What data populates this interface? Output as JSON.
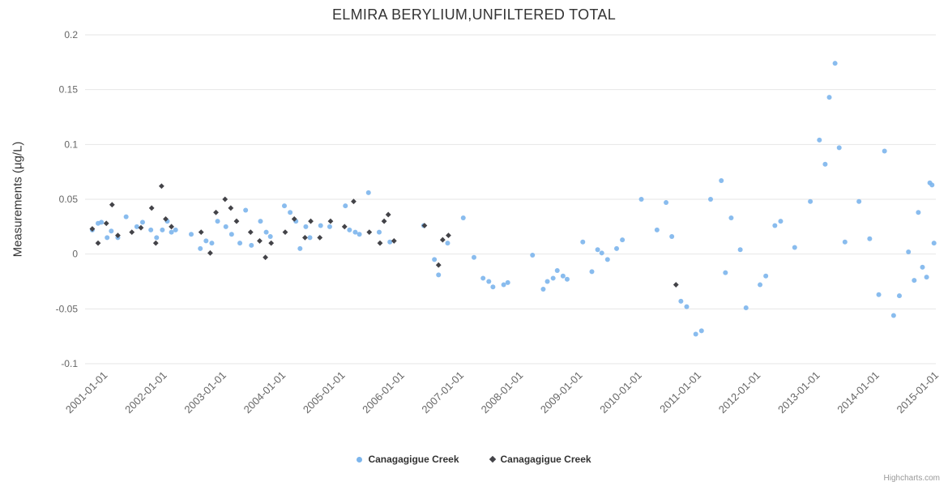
{
  "credits": {
    "label": "Highcharts.com"
  },
  "chart_data": {
    "type": "scatter",
    "title": "ELMIRA BERYLIUM,UNFILTERED TOTAL",
    "xlabel": "",
    "ylabel": "Measurements (µg/L)",
    "grid": "horizontal-only",
    "legend_position": "bottom-center",
    "x_axis": {
      "type": "datetime",
      "range": [
        "2000-09-01",
        "2015-01-01"
      ],
      "tick_labels": [
        "2001-01-01",
        "2002-01-01",
        "2003-01-01",
        "2004-01-01",
        "2005-01-01",
        "2006-01-01",
        "2007-01-01",
        "2008-01-01",
        "2009-01-01",
        "2010-01-01",
        "2011-01-01",
        "2012-01-01",
        "2013-01-01",
        "2014-01-01",
        "2015-01-01"
      ]
    },
    "y_axis": {
      "range": [
        -0.1,
        0.2
      ],
      "ticks": [
        -0.1,
        -0.05,
        0,
        0.05,
        0.1,
        0.15,
        0.2
      ]
    },
    "series": [
      {
        "name": "Canagagigue Creek",
        "marker": "circle",
        "color": "#7cb5ec",
        "points": [
          [
            "2000-10-15",
            0.022
          ],
          [
            "2000-11-20",
            0.028
          ],
          [
            "2000-12-10",
            0.029
          ],
          [
            "2001-01-15",
            0.015
          ],
          [
            "2001-02-10",
            0.021
          ],
          [
            "2001-03-20",
            0.015
          ],
          [
            "2001-05-10",
            0.034
          ],
          [
            "2001-07-15",
            0.025
          ],
          [
            "2001-08-20",
            0.029
          ],
          [
            "2001-10-10",
            0.022
          ],
          [
            "2001-11-15",
            0.015
          ],
          [
            "2001-12-20",
            0.022
          ],
          [
            "2002-01-20",
            0.03
          ],
          [
            "2002-02-15",
            0.02
          ],
          [
            "2002-03-10",
            0.022
          ],
          [
            "2002-06-15",
            0.018
          ],
          [
            "2002-08-10",
            0.005
          ],
          [
            "2002-09-15",
            0.012
          ],
          [
            "2002-10-20",
            0.01
          ],
          [
            "2002-11-25",
            0.03
          ],
          [
            "2003-01-15",
            0.025
          ],
          [
            "2003-02-20",
            0.018
          ],
          [
            "2003-04-10",
            0.01
          ],
          [
            "2003-05-15",
            0.04
          ],
          [
            "2003-06-20",
            0.008
          ],
          [
            "2003-08-15",
            0.03
          ],
          [
            "2003-09-20",
            0.02
          ],
          [
            "2003-10-15",
            0.016
          ],
          [
            "2004-01-10",
            0.044
          ],
          [
            "2004-02-15",
            0.038
          ],
          [
            "2004-03-20",
            0.03
          ],
          [
            "2004-04-15",
            0.005
          ],
          [
            "2004-05-20",
            0.025
          ],
          [
            "2004-06-15",
            0.015
          ],
          [
            "2004-08-20",
            0.026
          ],
          [
            "2004-10-15",
            0.025
          ],
          [
            "2005-01-20",
            0.044
          ],
          [
            "2005-02-15",
            0.022
          ],
          [
            "2005-03-20",
            0.02
          ],
          [
            "2005-04-15",
            0.018
          ],
          [
            "2005-06-10",
            0.056
          ],
          [
            "2005-08-15",
            0.02
          ],
          [
            "2005-10-20",
            0.011
          ],
          [
            "2006-05-15",
            0.026
          ],
          [
            "2006-07-20",
            -0.005
          ],
          [
            "2006-08-15",
            -0.019
          ],
          [
            "2006-10-10",
            0.01
          ],
          [
            "2007-01-15",
            0.033
          ],
          [
            "2007-03-20",
            -0.003
          ],
          [
            "2007-05-15",
            -0.022
          ],
          [
            "2007-06-20",
            -0.025
          ],
          [
            "2007-07-15",
            -0.03
          ],
          [
            "2007-09-20",
            -0.028
          ],
          [
            "2007-10-15",
            -0.026
          ],
          [
            "2008-03-15",
            -0.001
          ],
          [
            "2008-05-20",
            -0.032
          ],
          [
            "2008-06-15",
            -0.025
          ],
          [
            "2008-07-20",
            -0.022
          ],
          [
            "2008-08-15",
            -0.015
          ],
          [
            "2008-09-20",
            -0.02
          ],
          [
            "2008-10-15",
            -0.023
          ],
          [
            "2009-01-20",
            0.011
          ],
          [
            "2009-03-15",
            -0.016
          ],
          [
            "2009-04-20",
            0.004
          ],
          [
            "2009-05-15",
            0.001
          ],
          [
            "2009-06-20",
            -0.005
          ],
          [
            "2009-08-15",
            0.005
          ],
          [
            "2009-09-20",
            0.013
          ],
          [
            "2010-01-15",
            0.05
          ],
          [
            "2010-04-20",
            0.022
          ],
          [
            "2010-06-15",
            0.047
          ],
          [
            "2010-07-20",
            0.016
          ],
          [
            "2010-09-15",
            -0.043
          ],
          [
            "2010-10-20",
            -0.048
          ],
          [
            "2010-12-15",
            -0.073
          ],
          [
            "2011-01-20",
            -0.07
          ],
          [
            "2011-03-15",
            0.05
          ],
          [
            "2011-05-20",
            0.067
          ],
          [
            "2011-06-15",
            -0.017
          ],
          [
            "2011-07-20",
            0.033
          ],
          [
            "2011-09-15",
            0.004
          ],
          [
            "2011-10-20",
            -0.049
          ],
          [
            "2012-01-15",
            -0.028
          ],
          [
            "2012-02-20",
            -0.02
          ],
          [
            "2012-04-15",
            0.026
          ],
          [
            "2012-05-20",
            0.03
          ],
          [
            "2012-08-15",
            0.006
          ],
          [
            "2012-11-20",
            0.048
          ],
          [
            "2013-01-15",
            0.104
          ],
          [
            "2013-02-20",
            0.082
          ],
          [
            "2013-03-15",
            0.143
          ],
          [
            "2013-04-20",
            0.174
          ],
          [
            "2013-05-15",
            0.097
          ],
          [
            "2013-06-20",
            0.011
          ],
          [
            "2013-09-15",
            0.048
          ],
          [
            "2013-11-20",
            0.014
          ],
          [
            "2014-01-15",
            -0.037
          ],
          [
            "2014-02-20",
            0.094
          ],
          [
            "2014-04-15",
            -0.056
          ],
          [
            "2014-05-20",
            -0.038
          ],
          [
            "2014-07-15",
            0.002
          ],
          [
            "2014-08-20",
            -0.024
          ],
          [
            "2014-09-15",
            0.038
          ],
          [
            "2014-10-10",
            -0.012
          ],
          [
            "2014-11-05",
            -0.021
          ],
          [
            "2014-11-25",
            0.065
          ],
          [
            "2014-12-08",
            0.063
          ],
          [
            "2014-12-20",
            0.01
          ]
        ]
      },
      {
        "name": "Canagagigue Creek",
        "marker": "diamond",
        "color": "#434348",
        "points": [
          [
            "2000-10-15",
            0.023
          ],
          [
            "2000-11-20",
            0.01
          ],
          [
            "2001-01-10",
            0.028
          ],
          [
            "2001-02-15",
            0.045
          ],
          [
            "2001-03-20",
            0.017
          ],
          [
            "2001-06-15",
            0.02
          ],
          [
            "2001-08-10",
            0.024
          ],
          [
            "2001-10-15",
            0.042
          ],
          [
            "2001-11-10",
            0.01
          ],
          [
            "2001-12-15",
            0.062
          ],
          [
            "2002-01-10",
            0.032
          ],
          [
            "2002-02-15",
            0.025
          ],
          [
            "2002-08-15",
            0.02
          ],
          [
            "2002-10-10",
            0.001
          ],
          [
            "2002-11-15",
            0.038
          ],
          [
            "2003-01-10",
            0.05
          ],
          [
            "2003-02-15",
            0.042
          ],
          [
            "2003-03-20",
            0.03
          ],
          [
            "2003-06-15",
            0.02
          ],
          [
            "2003-08-10",
            0.012
          ],
          [
            "2003-09-15",
            -0.003
          ],
          [
            "2003-10-20",
            0.01
          ],
          [
            "2004-01-15",
            0.02
          ],
          [
            "2004-03-10",
            0.032
          ],
          [
            "2004-05-15",
            0.015
          ],
          [
            "2004-06-20",
            0.03
          ],
          [
            "2004-08-15",
            0.015
          ],
          [
            "2004-10-20",
            0.03
          ],
          [
            "2005-01-15",
            0.025
          ],
          [
            "2005-03-10",
            0.048
          ],
          [
            "2005-06-15",
            0.02
          ],
          [
            "2005-08-20",
            0.01
          ],
          [
            "2005-09-15",
            0.03
          ],
          [
            "2005-10-10",
            0.036
          ],
          [
            "2005-11-15",
            0.012
          ],
          [
            "2006-05-20",
            0.026
          ],
          [
            "2006-08-15",
            -0.01
          ],
          [
            "2006-09-10",
            0.013
          ],
          [
            "2006-10-15",
            0.017
          ],
          [
            "2010-08-15",
            -0.028
          ]
        ]
      }
    ]
  }
}
